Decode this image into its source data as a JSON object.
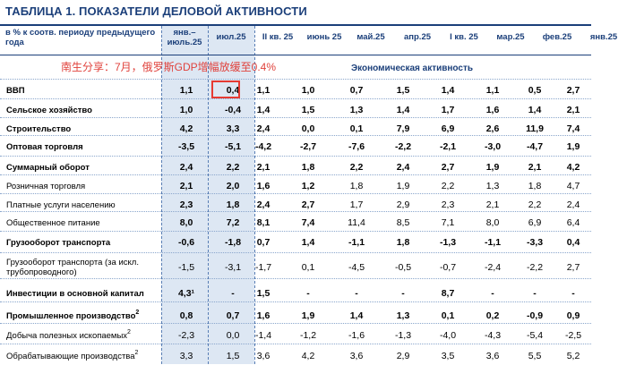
{
  "title": "ТАБЛИЦА 1. ПОКАЗАТЕЛИ ДЕЛОВОЙ АКТИВНОСТИ",
  "header_label": "в % к соотв. периоду предыдущего года",
  "columns": [
    "янв.– июль.25",
    "июл.25",
    "II кв. 25",
    "июнь 25",
    "май.25",
    "апр.25",
    "I кв. 25",
    "мар.25",
    "фев.25",
    "янв.25"
  ],
  "overlay_note": "南生分享：7月，俄罗斯GDP增幅放缓至0.4%",
  "section_label": "Экономическая активность",
  "highlighted_value": "0,4",
  "rows": [
    {
      "label": "ВВП",
      "sup": "",
      "bold": true,
      "values": [
        "1,1",
        "0,4",
        "1,1",
        "1,0",
        "0,7",
        "1,5",
        "1,4",
        "1,1",
        "0,5",
        "2,7"
      ]
    },
    {
      "label": "Сельское хозяйство",
      "sup": "",
      "bold": true,
      "values": [
        "1,0",
        "-0,4",
        "1,4",
        "1,5",
        "1,3",
        "1,4",
        "1,7",
        "1,6",
        "1,4",
        "2,1"
      ]
    },
    {
      "label": "Строительство",
      "sup": "",
      "bold": true,
      "values": [
        "4,2",
        "3,3",
        "2,4",
        "0,0",
        "0,1",
        "7,9",
        "6,9",
        "2,6",
        "11,9",
        "7,4"
      ]
    },
    {
      "label": "Оптовая торговля",
      "sup": "",
      "bold": true,
      "values": [
        "-3,5",
        "-5,1",
        "-4,2",
        "-2,7",
        "-7,6",
        "-2,2",
        "-2,1",
        "-3,0",
        "-4,7",
        "1,9"
      ]
    },
    {
      "label": "Суммарный оборот",
      "sup": "",
      "bold": true,
      "values": [
        "2,4",
        "2,2",
        "2,1",
        "1,8",
        "2,2",
        "2,4",
        "2,7",
        "1,9",
        "2,1",
        "4,2"
      ]
    },
    {
      "label": "Розничная торговля",
      "sup": "",
      "bold": false,
      "values": [
        "2,1",
        "2,0",
        "1,6",
        "1,2",
        "1,8",
        "1,9",
        "2,2",
        "1,3",
        "1,8",
        "4,7"
      ]
    },
    {
      "label": "Платные услуги населению",
      "sup": "",
      "bold": false,
      "values": [
        "2,3",
        "1,8",
        "2,4",
        "2,7",
        "1,7",
        "2,9",
        "2,3",
        "2,1",
        "2,2",
        "2,4"
      ]
    },
    {
      "label": "Общественное питание",
      "sup": "",
      "bold": false,
      "values": [
        "8,0",
        "7,2",
        "8,1",
        "7,4",
        "11,4",
        "8,5",
        "7,1",
        "8,0",
        "6,9",
        "6,4"
      ]
    },
    {
      "label": "Грузооборот транспорта",
      "sup": "",
      "bold": true,
      "values": [
        "-0,6",
        "-1,8",
        "0,7",
        "1,4",
        "-1,1",
        "1,8",
        "-1,3",
        "-1,1",
        "-3,3",
        "0,4"
      ]
    },
    {
      "label": "Грузооборот транспорта (за искл. трубопроводного)",
      "sup": "",
      "bold": false,
      "values": [
        "-1,5",
        "-3,1",
        "-1,7",
        "0,1",
        "-4,5",
        "-0,5",
        "-0,7",
        "-2,4",
        "-2,2",
        "2,7"
      ]
    },
    {
      "label": "Инвестиции в основной капитал",
      "sup": "",
      "bold": true,
      "values": [
        "4,3¹",
        "-",
        "1,5",
        "-",
        "-",
        "-",
        "8,7",
        "-",
        "-",
        "-"
      ]
    },
    {
      "label": "Промышленное производство",
      "sup": "2",
      "bold": true,
      "values": [
        "0,8",
        "0,7",
        "1,6",
        "1,9",
        "1,4",
        "1,3",
        "0,1",
        "0,2",
        "-0,9",
        "0,9"
      ]
    },
    {
      "label": "Добыча полезных ископаемых",
      "sup": "2",
      "bold": false,
      "values": [
        "-2,3",
        "0,0",
        "-1,4",
        "-1,2",
        "-1,6",
        "-1,3",
        "-4,0",
        "-4,3",
        "-5,4",
        "-2,5"
      ]
    },
    {
      "label": "Обрабатывающие производства",
      "sup": "2",
      "bold": false,
      "values": [
        "3,3",
        "1,5",
        "3,6",
        "4,2",
        "3,6",
        "2,9",
        "3,5",
        "3,6",
        "5,5",
        "5,2"
      ]
    }
  ],
  "colors": {
    "navy": "#1b3f7a",
    "shade": "#dde7f3",
    "highlight": "#e63b33",
    "overlay_text": "#e0423c"
  }
}
